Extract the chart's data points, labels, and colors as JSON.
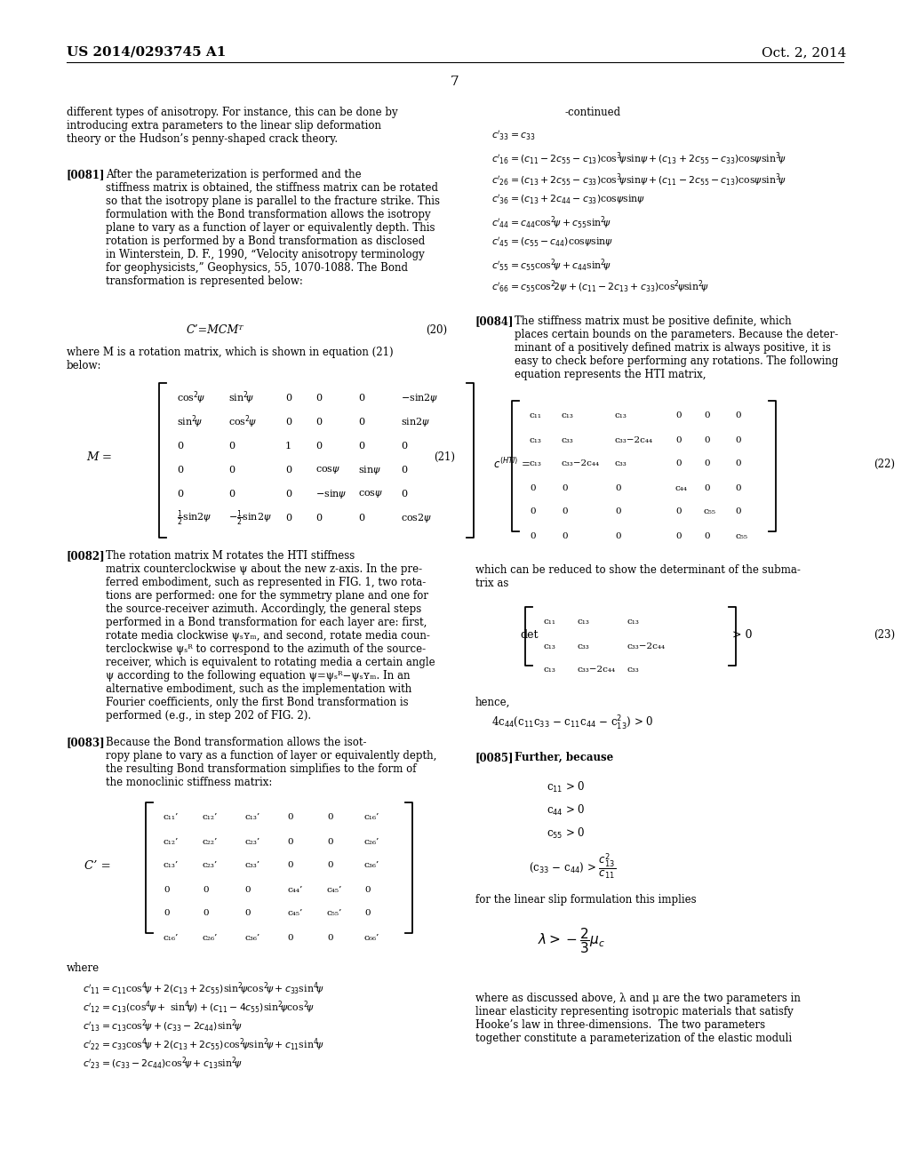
{
  "background_color": "#ffffff",
  "header_left": "US 2014/0293745 A1",
  "header_right": "Oct. 2, 2014",
  "page_number": "7"
}
